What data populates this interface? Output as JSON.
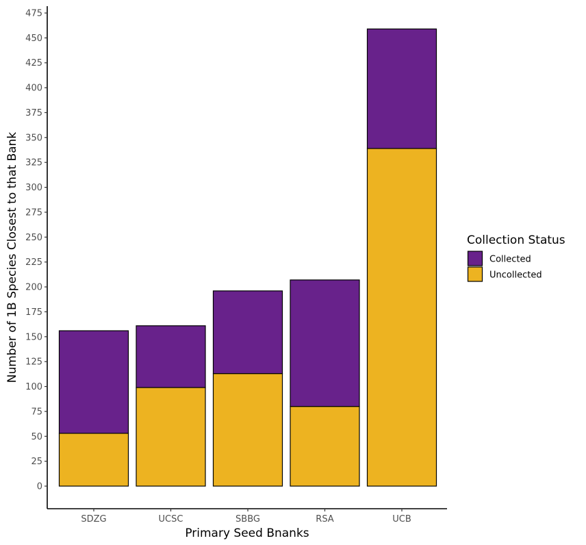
{
  "chart_data": {
    "type": "bar",
    "stacked": true,
    "categories": [
      "SDZG",
      "UCSC",
      "SBBG",
      "RSA",
      "UCB"
    ],
    "series": [
      {
        "name": "Uncollected",
        "color": "#EDB321",
        "values": [
          53,
          99,
          113,
          80,
          339
        ]
      },
      {
        "name": "Collected",
        "color": "#68228B",
        "values": [
          103,
          62,
          83,
          127,
          120
        ]
      }
    ],
    "xlabel": "Primary Seed Bnanks",
    "ylabel": "Number of 1B Species Closest to that Bank",
    "ylim": [
      -22,
      476
    ],
    "yticks": [
      0,
      25,
      50,
      75,
      100,
      125,
      150,
      175,
      200,
      225,
      250,
      275,
      300,
      325,
      350,
      375,
      400,
      425,
      450,
      475
    ],
    "legend": {
      "title": "Collection Status",
      "entries": [
        "Collected",
        "Uncollected"
      ],
      "placement": "right"
    },
    "grid": false
  }
}
